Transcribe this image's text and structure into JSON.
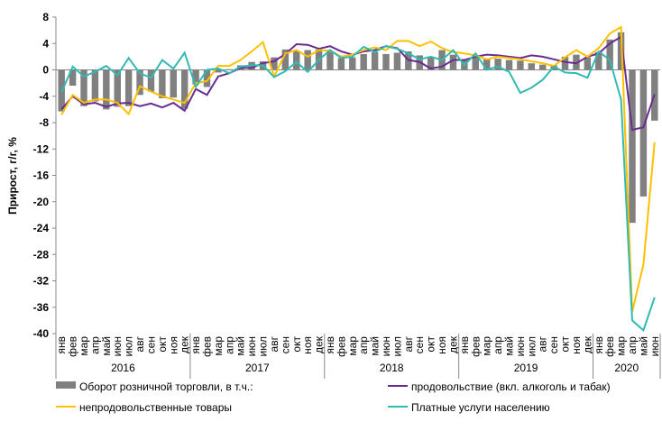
{
  "chart_data": {
    "type": "combo",
    "ylabel": "Прирост, г/г, %",
    "categories": [
      "янв",
      "фев",
      "мар",
      "апр",
      "май",
      "июн",
      "июл",
      "авг",
      "сен",
      "окт",
      "ноя",
      "дек",
      "янв",
      "фев",
      "мар",
      "апр",
      "май",
      "июн",
      "июл",
      "авг",
      "сен",
      "окт",
      "ноя",
      "дек",
      "янв",
      "фев",
      "мар",
      "апр",
      "май",
      "июн",
      "июл",
      "авг",
      "сен",
      "окт",
      "ноя",
      "дек",
      "янв",
      "фев",
      "мар",
      "апр",
      "май",
      "июн",
      "июл",
      "авг",
      "сен",
      "окт",
      "ноя",
      "дек",
      "янв",
      "фев",
      "мар",
      "апр",
      "май",
      "июн"
    ],
    "years": [
      "2016",
      "2017",
      "2018",
      "2019",
      "2020"
    ],
    "ylim": [
      -40,
      8
    ],
    "yticks": [
      -40,
      -36,
      -32,
      -28,
      -24,
      -20,
      -16,
      -12,
      -8,
      -4,
      0,
      4,
      8
    ],
    "series": [
      {
        "name": "Оборот розничной торговли, в т.ч.:",
        "type": "bar",
        "color": "#808080",
        "values": [
          -6.3,
          -2.4,
          -5.5,
          -4.8,
          -6.0,
          -5.6,
          -5.5,
          -3.8,
          -3.3,
          -4.3,
          -4.2,
          -5.9,
          -2.2,
          -2.6,
          -0.4,
          0.1,
          0.7,
          1.2,
          1.3,
          1.9,
          3.1,
          2.9,
          3.0,
          3.1,
          2.8,
          1.8,
          1.9,
          2.4,
          2.7,
          2.4,
          2.6,
          2.8,
          2.2,
          1.9,
          3.0,
          2.3,
          1.6,
          2.0,
          1.6,
          1.7,
          1.5,
          1.4,
          1.0,
          0.8,
          0.7,
          2.0,
          2.3,
          1.9,
          2.7,
          4.6,
          5.7,
          -23.2,
          -19.2,
          -7.7
        ]
      },
      {
        "name": "продовольствие (вкл. алкоголь и табак)",
        "type": "line",
        "color": "#6a2c91",
        "values": [
          -6.0,
          -4.0,
          -5.2,
          -5.0,
          -5.6,
          -5.1,
          -5.0,
          -5.5,
          -5.1,
          -5.7,
          -5.0,
          -6.2,
          -2.9,
          -3.8,
          -1.0,
          -0.5,
          0.3,
          0.3,
          1.0,
          1.3,
          2.4,
          3.9,
          3.8,
          3.2,
          3.6,
          2.8,
          2.3,
          2.8,
          3.0,
          3.6,
          3.3,
          1.5,
          1.2,
          0.2,
          0.5,
          1.5,
          1.5,
          2.0,
          2.3,
          2.2,
          2.0,
          1.8,
          2.2,
          2.0,
          1.6,
          1.2,
          1.0,
          2.0,
          2.5,
          4.0,
          5.0,
          -9.1,
          -8.7,
          -3.7
        ]
      },
      {
        "name": "непродовольственные товары",
        "type": "line",
        "color": "#ffc000",
        "values": [
          -6.8,
          -3.8,
          -5.0,
          -4.5,
          -4.5,
          -5.0,
          -6.7,
          -2.5,
          -3.3,
          -4.0,
          -4.5,
          -5.0,
          -2.0,
          -1.7,
          0.6,
          0.6,
          1.5,
          2.8,
          4.2,
          -1.0,
          2.5,
          3.0,
          2.0,
          3.0,
          2.9,
          2.0,
          2.3,
          3.0,
          3.4,
          3.0,
          4.4,
          4.4,
          3.6,
          4.3,
          3.3,
          2.7,
          2.5,
          2.2,
          1.6,
          2.0,
          1.8,
          1.6,
          1.3,
          1.0,
          0.6,
          1.9,
          3.0,
          2.0,
          3.3,
          5.5,
          6.5,
          -36.7,
          -29.5,
          -11.0
        ]
      },
      {
        "name": "Платные услуги населению",
        "type": "line",
        "color": "#31b9b3",
        "values": [
          -3.4,
          0.5,
          -1.0,
          -0.3,
          0.6,
          -0.8,
          1.8,
          -0.5,
          -1.2,
          1.5,
          0.2,
          2.6,
          -2.6,
          0.0,
          0.2,
          -0.5,
          0.5,
          0.7,
          0.7,
          -1.1,
          -0.2,
          1.2,
          -0.3,
          1.5,
          3.0,
          1.8,
          2.0,
          3.5,
          2.7,
          3.6,
          3.2,
          2.5,
          1.6,
          2.0,
          1.5,
          3.0,
          0.7,
          2.5,
          0.0,
          0.5,
          -0.3,
          -3.5,
          -2.7,
          -1.5,
          0.5,
          -0.4,
          -0.5,
          -1.2,
          2.8,
          1.5,
          -4.5,
          -38.0,
          -39.5,
          -34.5
        ]
      }
    ]
  }
}
